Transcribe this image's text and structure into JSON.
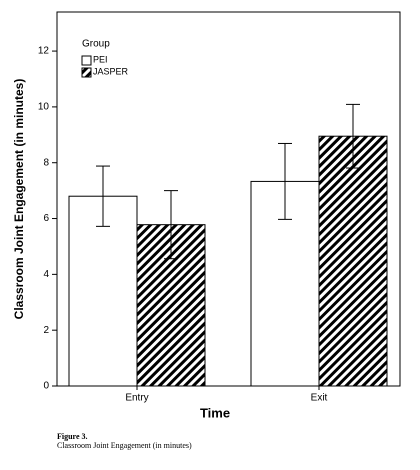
{
  "chart_data": {
    "type": "bar",
    "x_label": "Time",
    "y_label": "Classroom Joint Engagement (in minutes)",
    "categories": [
      "Entry",
      "Exit"
    ],
    "legend_title": "Group",
    "series": [
      {
        "name": "PEI",
        "color": "#ffffff",
        "hatch": false,
        "values": [
          6.8,
          7.33
        ],
        "errors": [
          1.08,
          1.36
        ]
      },
      {
        "name": "JASPER",
        "color": "#000000",
        "hatch": true,
        "values": [
          5.78,
          8.95
        ],
        "errors": [
          1.22,
          1.14
        ]
      }
    ],
    "ylim": [
      0,
      13.4
    ],
    "yticks": [
      0,
      2,
      4,
      6,
      8,
      10,
      12
    ],
    "grid": false,
    "legend": "upper left"
  },
  "caption": {
    "label": "Figure 3.",
    "text": "Classroom Joint Engagement (in minutes)"
  }
}
